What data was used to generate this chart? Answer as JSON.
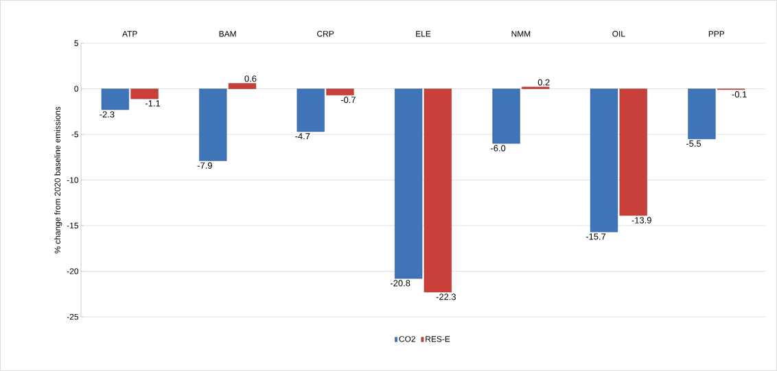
{
  "chart_data": {
    "type": "bar",
    "ylabel": "% change from 2020 baseline emissions",
    "categories": [
      "ATP",
      "BAM",
      "CRP",
      "ELE",
      "NMM",
      "OIL",
      "PPP"
    ],
    "series": [
      {
        "name": "CO2",
        "color": "#3f74b8",
        "values": [
          -2.3,
          -7.9,
          -4.7,
          -20.8,
          -6.0,
          -15.7,
          -5.5
        ],
        "value_labels": [
          "-2.3",
          "-7.9",
          "-4.7",
          "-20.8",
          "-6.0",
          "-15.7",
          "-5.5"
        ]
      },
      {
        "name": "RES-E",
        "color": "#c9403b",
        "values": [
          -1.1,
          0.6,
          -0.7,
          -22.3,
          0.2,
          -13.9,
          -0.1
        ],
        "value_labels": [
          "-1.1",
          "0.6",
          "-0.7",
          "-22.3",
          "0.2",
          "-13.9",
          "-0.1"
        ]
      }
    ],
    "ylim": [
      -25,
      5
    ],
    "yticks": [
      -25,
      -20,
      -15,
      -10,
      -5,
      0,
      5
    ],
    "grid": "y",
    "legend": "bottom"
  }
}
